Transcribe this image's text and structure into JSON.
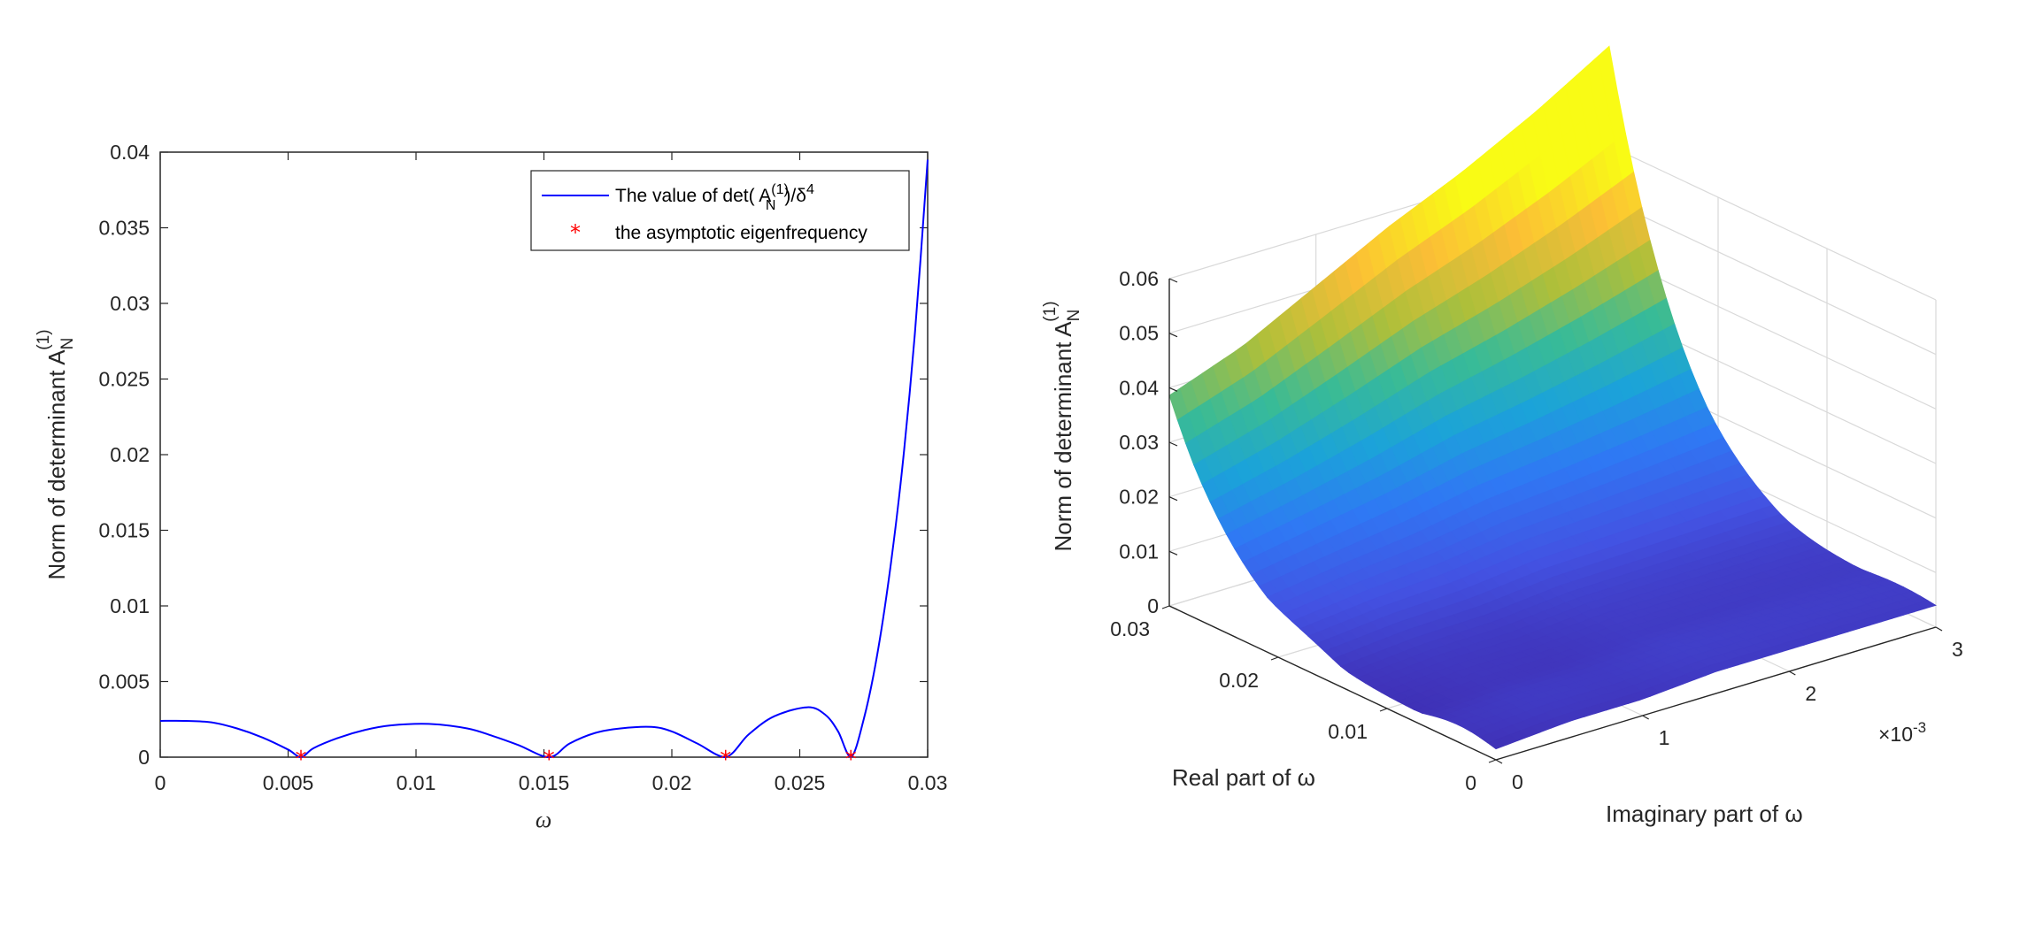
{
  "chart_data": [
    {
      "type": "line",
      "xlabel": "ω",
      "ylabel": "Norm of determinant A",
      "ylabel_sub": "N",
      "ylabel_sup": "(1)",
      "xlim": [
        0,
        0.03
      ],
      "ylim": [
        0,
        0.04
      ],
      "xticks": [
        0,
        0.005,
        0.01,
        0.015,
        0.02,
        0.025,
        0.03
      ],
      "xtick_labels": [
        "0",
        "0.005",
        "0.01",
        "0.015",
        "0.02",
        "0.025",
        "0.03"
      ],
      "yticks": [
        0,
        0.005,
        0.01,
        0.015,
        0.02,
        0.025,
        0.03,
        0.035,
        0.04
      ],
      "ytick_labels": [
        "0",
        "0.005",
        "0.01",
        "0.015",
        "0.02",
        "0.025",
        "0.03",
        "0.035",
        "0.04"
      ],
      "legend_position": "top-right",
      "series": [
        {
          "name": "The value of det( A_N^(1))/δ^4",
          "legend_text": {
            "pre": "The value of det( A",
            "sup": "(1)",
            "sub": "N",
            "post": ")/δ",
            "post_sup": "4"
          },
          "color": "#0000ff",
          "x": [
            0,
            0.001,
            0.002,
            0.003,
            0.004,
            0.005,
            0.0055,
            0.006,
            0.007,
            0.008,
            0.009,
            0.0105,
            0.012,
            0.013,
            0.014,
            0.0152,
            0.016,
            0.017,
            0.018,
            0.0192,
            0.02,
            0.021,
            0.0221,
            0.023,
            0.024,
            0.0253,
            0.026,
            0.0265,
            0.027,
            0.0275,
            0.028,
            0.0285,
            0.029,
            0.0295,
            0.03
          ],
          "y": [
            0.0024,
            0.0024,
            0.0023,
            0.0019,
            0.0013,
            0.0005,
            0.0,
            0.0006,
            0.0013,
            0.0018,
            0.0021,
            0.0022,
            0.0019,
            0.0014,
            0.0008,
            0.0,
            0.0009,
            0.0016,
            0.0019,
            0.002,
            0.0017,
            0.0009,
            0.0,
            0.0015,
            0.0027,
            0.0033,
            0.0028,
            0.0017,
            0.0,
            0.0025,
            0.0065,
            0.012,
            0.019,
            0.028,
            0.0395
          ]
        },
        {
          "name": "the asymptotic eigenfrequency",
          "color": "#ff0000",
          "marker": "*",
          "x": [
            0.0055,
            0.0152,
            0.0221,
            0.027
          ],
          "y": [
            0,
            0,
            0,
            0
          ]
        }
      ]
    },
    {
      "type": "surface",
      "xlabel": "Imaginary part of ω",
      "ylabel": "Real part of ω",
      "zlabel": "Norm of determinant A",
      "zlabel_sub": "N",
      "zlabel_sup": "(1)",
      "x_multiplier": "×10",
      "x_multiplier_exp": "-3",
      "xlim": [
        0,
        3
      ],
      "xticks": [
        0,
        1,
        2,
        3
      ],
      "xtick_labels": [
        "0",
        "1",
        "2",
        "3"
      ],
      "ylim": [
        0,
        0.03
      ],
      "yticks": [
        0,
        0.01,
        0.02,
        0.03
      ],
      "ytick_labels": [
        "0",
        "0.01",
        "0.02",
        "0.03"
      ],
      "zlim": [
        0,
        0.06
      ],
      "zticks": [
        0,
        0.01,
        0.02,
        0.03,
        0.04,
        0.05,
        0.06
      ],
      "ztick_labels": [
        "0",
        "0.01",
        "0.02",
        "0.03",
        "0.04",
        "0.05",
        "0.06"
      ],
      "grid": true,
      "colormap": [
        "#3e26a8",
        "#4352e2",
        "#2f78f4",
        "#1ba3d9",
        "#38bb97",
        "#aebf3a",
        "#fbbe36",
        "#f9fb15"
      ],
      "back_edge_imag": [
        0,
        0.5,
        1,
        1.5,
        2,
        2.5,
        3
      ],
      "back_edge_value": [
        0.038,
        0.043,
        0.05,
        0.057,
        0.063,
        0.07,
        0.078
      ],
      "front_edge_imag": [
        0,
        0.5,
        1,
        1.5,
        2,
        2.5,
        3
      ],
      "front_edge_value": [
        0.002,
        0.003,
        0.003,
        0.004,
        0.004,
        0.004,
        0.004
      ]
    }
  ]
}
